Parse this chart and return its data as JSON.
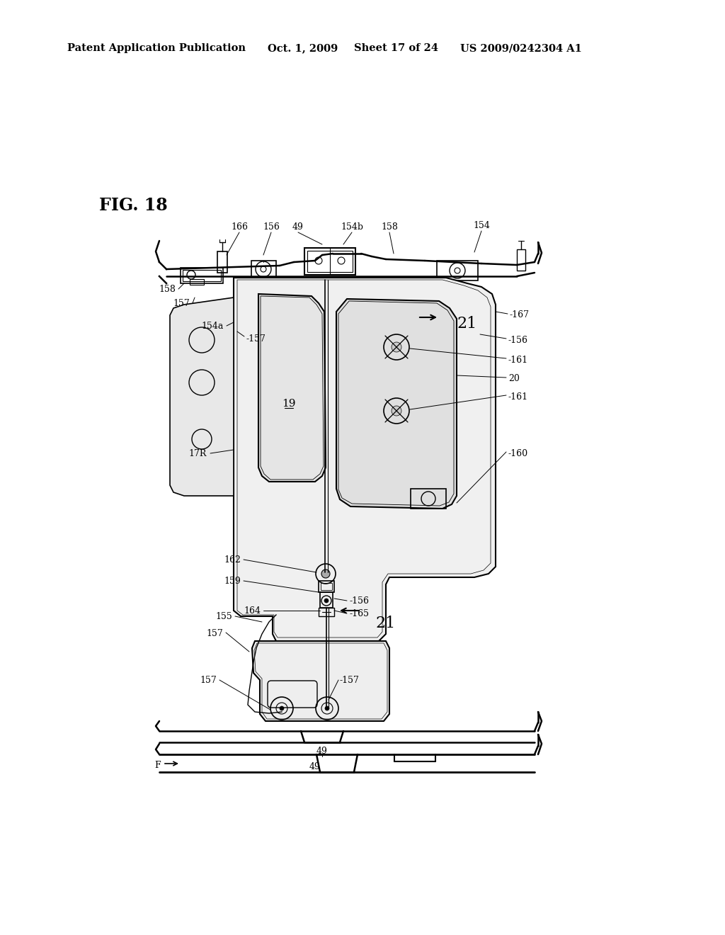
{
  "bg_color": "#ffffff",
  "header_text": "Patent Application Publication",
  "header_date": "Oct. 1, 2009",
  "header_sheet": "Sheet 17 of 24",
  "header_patent": "US 2009/0242304 A1",
  "fig_label": "FIG. 18",
  "header_fontsize": 10.5,
  "fig_label_fontsize": 17,
  "label_fontsize": 9,
  "small_label_fontsize": 8.5
}
